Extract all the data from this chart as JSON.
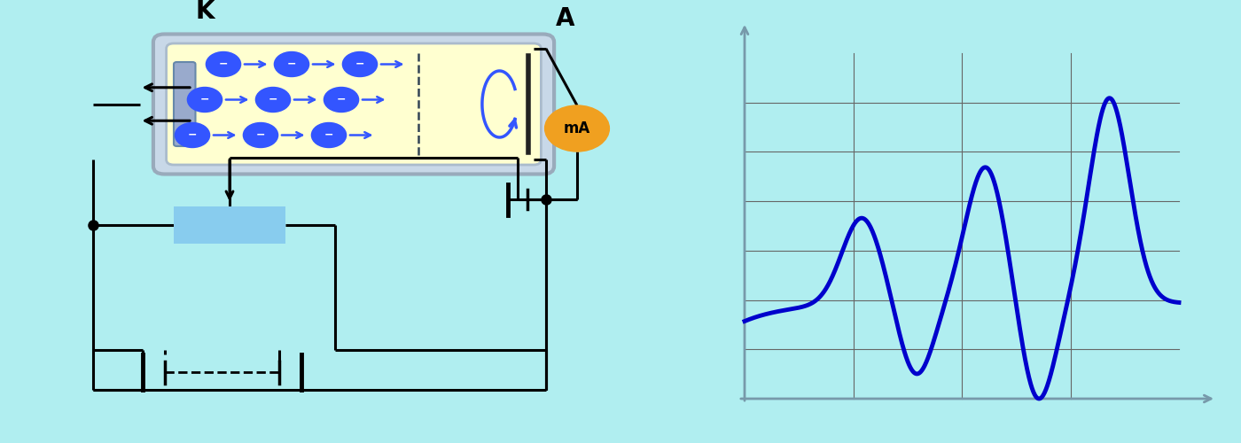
{
  "left_bg_color": "#b0eef0",
  "right_bg_color": "#000000",
  "fig_width": 14.0,
  "fig_height": 5.0,
  "tube_fill_color": "#ffffd0",
  "tube_border_outer_color": "#aabbcc",
  "tube_border_inner_color": "#8899bb",
  "electron_color": "#3355ff",
  "wire_color": "#000000",
  "mA_color": "#f0a020",
  "resistor_color": "#88ccee",
  "grid_color": "#666666",
  "curve_color": "#0000cc",
  "axis_color": "#7799aa",
  "label_K": "K",
  "label_A": "A",
  "label_mA": "mA"
}
